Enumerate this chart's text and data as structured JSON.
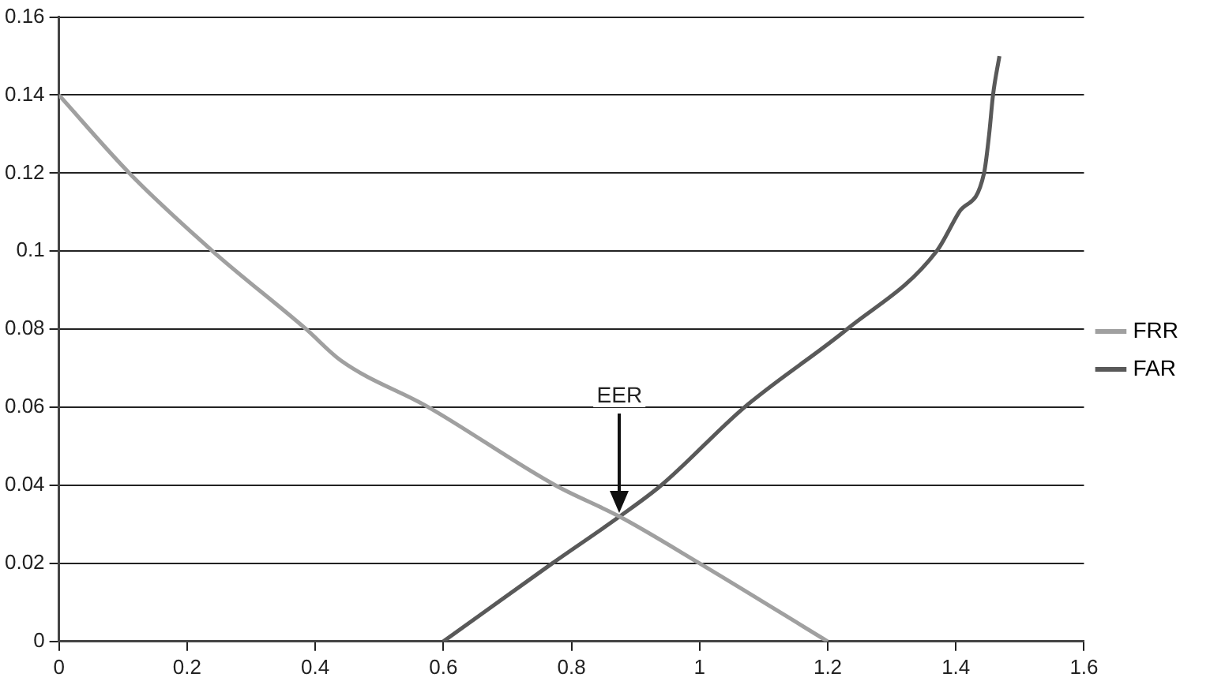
{
  "chart_data": {
    "type": "line",
    "series": [
      {
        "name": "FRR",
        "color": "#a0a0a0",
        "x": [
          0,
          0.11,
          0.24,
          0.386,
          0.44,
          0.577,
          0.775,
          0.875,
          1.0,
          1.2
        ],
        "values": [
          0.14,
          0.12,
          0.1,
          0.08,
          0.072,
          0.06,
          0.04,
          0.032,
          0.02,
          0
        ]
      },
      {
        "name": "FAR",
        "color": "#595959",
        "x": [
          0.6,
          0.77,
          0.875,
          0.94,
          1.07,
          1.23,
          1.37,
          1.405,
          1.444,
          1.452,
          1.458,
          1.468
        ],
        "values": [
          0,
          0.02,
          0.032,
          0.04,
          0.06,
          0.08,
          0.1,
          0.11,
          0.12,
          0.13,
          0.14,
          0.15
        ]
      }
    ],
    "xlim": [
      0,
      1.6
    ],
    "xticks": [
      0,
      0.2,
      0.4,
      0.6,
      0.8,
      1,
      1.2,
      1.4,
      1.6
    ],
    "ylim": [
      0,
      0.16
    ],
    "yticks": [
      0,
      0.02,
      0.04,
      0.06,
      0.08,
      0.1,
      0.12,
      0.14,
      0.16
    ],
    "grid": "y",
    "legend": "right",
    "marker": "none",
    "line_style": "solid",
    "annotations": [
      "EER"
    ]
  }
}
